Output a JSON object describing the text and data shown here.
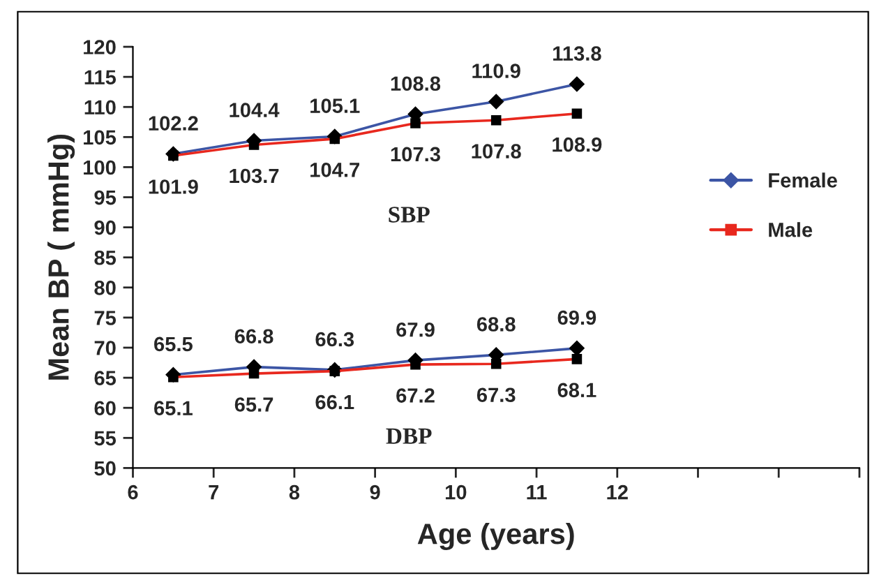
{
  "chart_data": {
    "type": "line",
    "xlabel": "Age (years)",
    "ylabel": "Mean BP ( mmHg)",
    "x": [
      6.5,
      7.5,
      8.5,
      9.5,
      10.5,
      11.5
    ],
    "series": [
      {
        "name": "Female",
        "color": "#3c55a5",
        "marker": "diamond",
        "values": [
          102.2,
          104.4,
          105.1,
          108.8,
          110.9,
          113.8
        ]
      },
      {
        "name": "Male",
        "color": "#e8281e",
        "marker": "square",
        "values": [
          101.9,
          103.7,
          104.7,
          107.3,
          107.8,
          108.9
        ]
      },
      {
        "color": "#3c55a5",
        "marker": "diamond",
        "values": [
          65.5,
          66.8,
          66.3,
          67.9,
          68.8,
          69.9
        ]
      },
      {
        "color": "#e8281e",
        "marker": "square",
        "values": [
          65.1,
          65.7,
          66.1,
          67.2,
          67.3,
          68.1
        ]
      }
    ],
    "xlim": [
      6,
      15
    ],
    "xticks": [
      6,
      7,
      8,
      9,
      10,
      11,
      12,
      {
        "value": 13,
        "label": null
      },
      {
        "value": 14,
        "label": null
      },
      {
        "value": 15,
        "label": null
      }
    ],
    "ylim": [
      50,
      120
    ],
    "yticks": [
      50,
      55,
      60,
      65,
      70,
      75,
      80,
      85,
      90,
      95,
      100,
      105,
      110,
      115,
      120
    ],
    "annotations": [
      "SBP",
      "DBP"
    ],
    "data_labels": true,
    "legend": "right",
    "grid": false,
    "line_style": "solid"
  }
}
